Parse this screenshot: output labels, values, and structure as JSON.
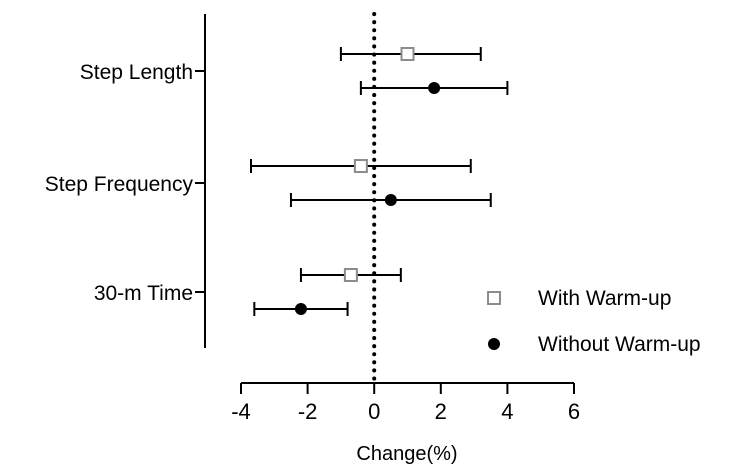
{
  "chart_data": {
    "type": "forest",
    "xlabel": "Change(%)",
    "xlim": [
      -4,
      6
    ],
    "xticks": [
      -4,
      -2,
      0,
      2,
      4,
      6
    ],
    "reference_line_x": 0,
    "categories": [
      "Step Length",
      "Step Frequency",
      "30-m Time"
    ],
    "series": [
      {
        "name": "With Warm-up",
        "marker": "open-square",
        "color": "#8c8c8c",
        "points": [
          {
            "category": "Step Length",
            "mean": 1.0,
            "lower": -1.0,
            "upper": 3.2
          },
          {
            "category": "Step Frequency",
            "mean": -0.4,
            "lower": -3.7,
            "upper": 2.9
          },
          {
            "category": "30-m Time",
            "mean": -0.7,
            "lower": -2.2,
            "upper": 0.8
          }
        ]
      },
      {
        "name": "Without Warm-up",
        "marker": "filled-circle",
        "color": "#000000",
        "points": [
          {
            "category": "Step Length",
            "mean": 1.8,
            "lower": -0.4,
            "upper": 4.0
          },
          {
            "category": "Step Frequency",
            "mean": 0.5,
            "lower": -2.5,
            "upper": 3.5
          },
          {
            "category": "30-m Time",
            "mean": -2.2,
            "lower": -3.6,
            "upper": -0.8
          }
        ]
      }
    ],
    "legend": {
      "position": "bottom-right"
    }
  }
}
